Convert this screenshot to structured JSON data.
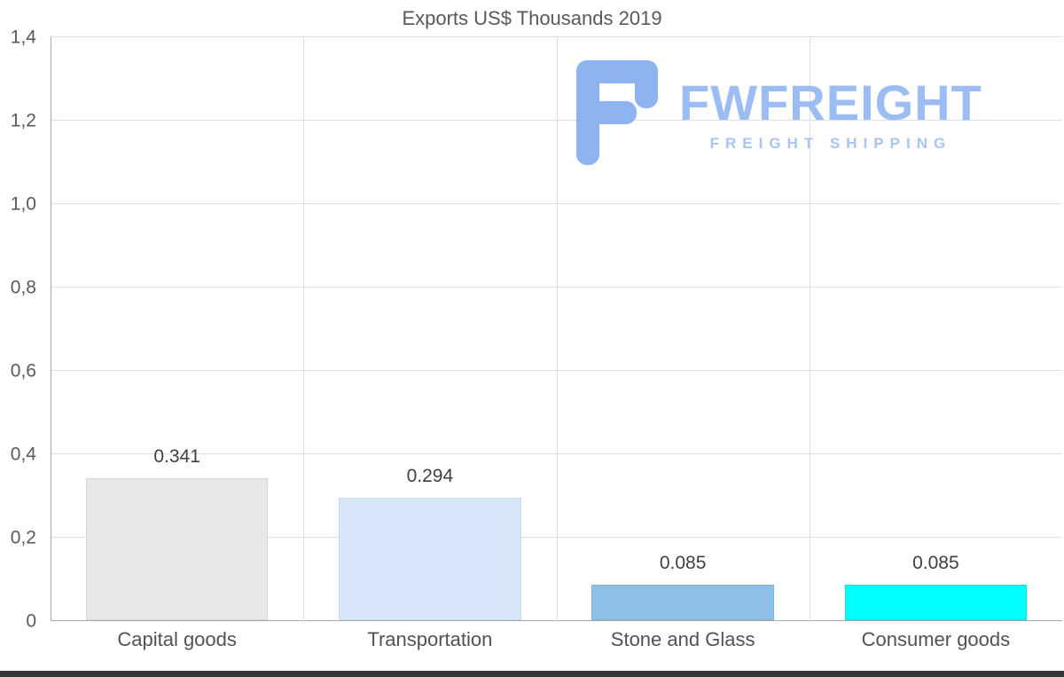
{
  "watermark": {
    "brand": "FWFREIGHT",
    "tagline": "FREIGHT SHIPPING",
    "brand_color": "#9cbdf3",
    "tagline_color": "#aac5f1",
    "icon_color": "#8db3f0"
  },
  "chart_data": {
    "type": "bar",
    "title": "Exports US$ Thousands 2019",
    "categories": [
      "Capital goods",
      "Transportation",
      "Stone and Glass",
      "Consumer goods"
    ],
    "values": [
      0.341,
      0.294,
      0.085,
      0.085
    ],
    "value_labels": [
      "0.341",
      "0.294",
      "0.085",
      "0.085"
    ],
    "bar_colors": [
      "#e8e8e8",
      "#d7e6f8",
      "#8fc0e8",
      "#00ffff"
    ],
    "bar_border_colors": [
      "#d5d5d5",
      "#c4daf3",
      "#7db1dd",
      "#00e3e3"
    ],
    "xlabel": "",
    "ylabel": "",
    "ylim": [
      0,
      1.4
    ],
    "yticks": [
      {
        "v": 1.4,
        "label": "1,4"
      },
      {
        "v": 1.2,
        "label": "1,2"
      },
      {
        "v": 1.0,
        "label": "1,0"
      },
      {
        "v": 0.8,
        "label": "0,8"
      },
      {
        "v": 0.6,
        "label": "0,6"
      },
      {
        "v": 0.4,
        "label": "0,4"
      },
      {
        "v": 0.2,
        "label": "0,2"
      },
      {
        "v": 0,
        "label": "0"
      }
    ],
    "grid": true,
    "legend": false
  }
}
